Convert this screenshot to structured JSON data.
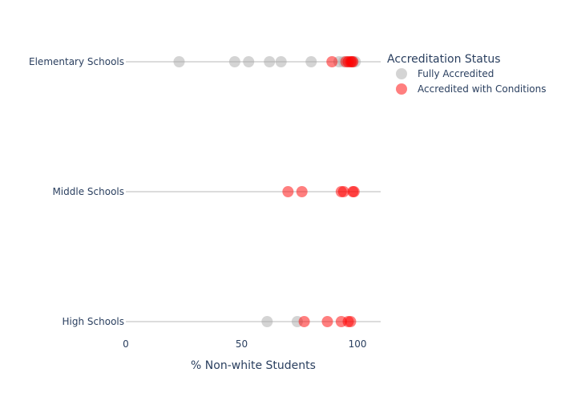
{
  "chart_data": {
    "type": "scatter",
    "xlabel": "% Non-white Students",
    "xlim": [
      0,
      110
    ],
    "x_ticks": [
      0,
      50,
      100
    ],
    "categories": [
      "Elementary Schools",
      "Middle Schools",
      "High Schools"
    ],
    "legend": {
      "title": "Accreditation Status",
      "placement": "top-right"
    },
    "colors": {
      "Fully Accredited": "#a9a9a9",
      "Accredited with Conditions": "#ff0000",
      "line": "#d0d0d0",
      "text": "#2a3f5f"
    },
    "series": [
      {
        "name": "Fully Accredited",
        "points": [
          {
            "category": "Elementary Schools",
            "x": 23
          },
          {
            "category": "Elementary Schools",
            "x": 47
          },
          {
            "category": "Elementary Schools",
            "x": 53
          },
          {
            "category": "Elementary Schools",
            "x": 62
          },
          {
            "category": "Elementary Schools",
            "x": 67
          },
          {
            "category": "Elementary Schools",
            "x": 80
          },
          {
            "category": "Elementary Schools",
            "x": 92
          },
          {
            "category": "Elementary Schools",
            "x": 94
          },
          {
            "category": "Elementary Schools",
            "x": 96
          },
          {
            "category": "Elementary Schools",
            "x": 98
          },
          {
            "category": "Elementary Schools",
            "x": 99
          },
          {
            "category": "High Schools",
            "x": 61
          },
          {
            "category": "High Schools",
            "x": 74
          }
        ]
      },
      {
        "name": "Accredited with Conditions",
        "points": [
          {
            "category": "Elementary Schools",
            "x": 89
          },
          {
            "category": "Elementary Schools",
            "x": 95
          },
          {
            "category": "Elementary Schools",
            "x": 96
          },
          {
            "category": "Elementary Schools",
            "x": 97
          },
          {
            "category": "Elementary Schools",
            "x": 97.5
          },
          {
            "category": "Elementary Schools",
            "x": 98
          },
          {
            "category": "Middle Schools",
            "x": 70
          },
          {
            "category": "Middle Schools",
            "x": 76
          },
          {
            "category": "Middle Schools",
            "x": 93
          },
          {
            "category": "Middle Schools",
            "x": 94
          },
          {
            "category": "Middle Schools",
            "x": 98
          },
          {
            "category": "Middle Schools",
            "x": 98.5
          },
          {
            "category": "High Schools",
            "x": 77
          },
          {
            "category": "High Schools",
            "x": 87
          },
          {
            "category": "High Schools",
            "x": 93
          },
          {
            "category": "High Schools",
            "x": 96
          },
          {
            "category": "High Schools",
            "x": 97
          }
        ]
      }
    ]
  }
}
